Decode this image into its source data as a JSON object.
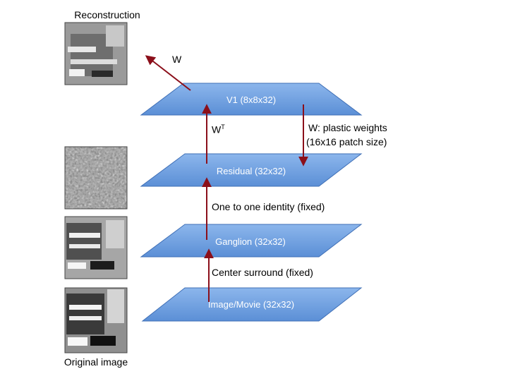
{
  "colors": {
    "layer_fill": "#5b8fd6",
    "layer_fill_light": "#8cb6ec",
    "layer_stroke": "#3f6fb6",
    "arrow": "#8b0f1a"
  },
  "images": {
    "reconstruction_label": "Reconstruction",
    "original_label": "Original image"
  },
  "layers": [
    {
      "id": "v1",
      "label": "V1 (8x8x32)"
    },
    {
      "id": "residual",
      "label": "Residual (32x32)"
    },
    {
      "id": "ganglion",
      "label": "Ganglion (32x32)"
    },
    {
      "id": "image",
      "label": "Image/Movie (32x32)"
    }
  ],
  "annotations": {
    "w_out": "W",
    "w_transpose_base": "W",
    "w_transpose_sup": "T",
    "plastic_line1": "W: plastic weights",
    "plastic_line2": "(16x16 patch size)",
    "identity": "One to one identity (fixed)",
    "center_surround": "Center surround (fixed)"
  }
}
